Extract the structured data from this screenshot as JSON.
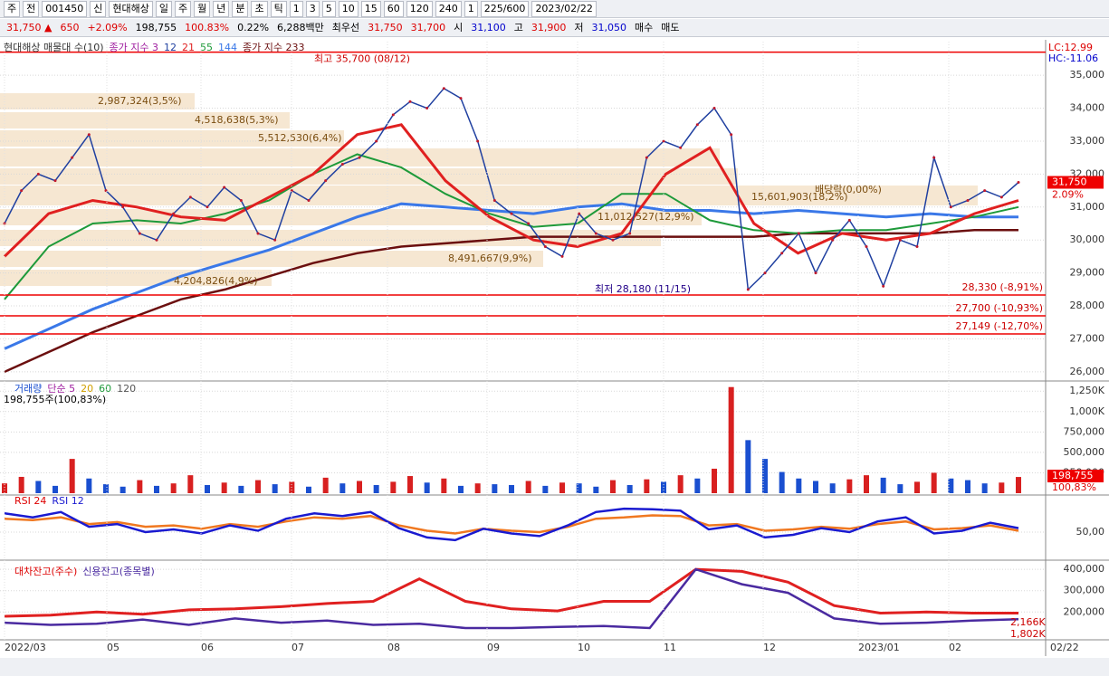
{
  "toolbar": {
    "items": [
      "주",
      "전",
      "001450",
      "신",
      "현대해상",
      "일",
      "주",
      "월",
      "년",
      "분",
      "초",
      "틱",
      "1",
      "3",
      "5",
      "10",
      "15",
      "60",
      "120",
      "240",
      "1",
      "225/600",
      "2023/02/22"
    ]
  },
  "info": {
    "items": [
      {
        "text": "31,750 ▲",
        "color": "#d00"
      },
      {
        "text": "650",
        "color": "#d00"
      },
      {
        "text": "+2.09%",
        "color": "#d00"
      },
      {
        "text": "198,755",
        "color": "#000"
      },
      {
        "text": "100.83%",
        "color": "#d00"
      },
      {
        "text": "0.22%",
        "color": "#000"
      },
      {
        "text": "6,288백만",
        "color": "#000"
      },
      {
        "text": "최우선",
        "color": "#000"
      },
      {
        "text": "31,750",
        "color": "#d00"
      },
      {
        "text": "31,700",
        "color": "#d00"
      },
      {
        "text": "시",
        "color": "#000"
      },
      {
        "text": "31,100",
        "color": "#00c"
      },
      {
        "text": "고",
        "color": "#000"
      },
      {
        "text": "31,900",
        "color": "#d00"
      },
      {
        "text": "저",
        "color": "#000"
      },
      {
        "text": "31,050",
        "color": "#00c"
      },
      {
        "text": "매수",
        "color": "#000"
      },
      {
        "text": "매도",
        "color": "#000"
      }
    ]
  },
  "price": {
    "legend": [
      "현대해상 매물대 수(10)",
      "종가 지수 3",
      "12",
      "21",
      "55",
      "144",
      "종가 지수 233"
    ],
    "lc": "LC:12.99",
    "hc": "HC:-11.06",
    "current": "31,750",
    "change": "2.09%",
    "ylim": [
      25750,
      36020
    ],
    "yticks": [
      {
        "value": 26000,
        "label": "26,000"
      },
      {
        "value": 27000,
        "label": "27,000"
      },
      {
        "value": 28000,
        "label": "28,000"
      },
      {
        "value": 29000,
        "label": "29,000"
      },
      {
        "value": 30000,
        "label": "30,000"
      },
      {
        "value": 31000,
        "label": "31,000"
      },
      {
        "value": 32000,
        "label": "32,000"
      },
      {
        "value": 33000,
        "label": "33,000"
      },
      {
        "value": 34000,
        "label": "34,000"
      },
      {
        "value": 35000,
        "label": "35,000"
      }
    ],
    "close": [
      30500,
      31500,
      32000,
      31800,
      32500,
      33200,
      31500,
      31000,
      30200,
      30000,
      30800,
      31300,
      31000,
      31600,
      31200,
      30200,
      30000,
      31500,
      31200,
      31800,
      32300,
      32500,
      33000,
      33800,
      34200,
      34000,
      34600,
      34300,
      33000,
      31200,
      30800,
      30500,
      29800,
      29500,
      30800,
      30200,
      30000,
      30200,
      32500,
      33000,
      32800,
      33500,
      34000,
      33200,
      28500,
      29000,
      29600,
      30200,
      29000,
      30000,
      30600,
      29800,
      28600,
      30000,
      29800,
      32500,
      31000,
      31200,
      31500,
      31300,
      31750
    ],
    "ma21": [
      29500,
      30800,
      31200,
      31000,
      30700,
      30600,
      31300,
      32000,
      33200,
      33500,
      31800,
      30700,
      30000,
      29800,
      30200,
      32000,
      32800,
      30500,
      29600,
      30200,
      30000,
      30200,
      30800,
      31200
    ],
    "ma55": [
      28200,
      29800,
      30500,
      30600,
      30500,
      30800,
      31200,
      32000,
      32600,
      32200,
      31400,
      30800,
      30400,
      30500,
      31400,
      31400,
      30600,
      30300,
      30200,
      30300,
      30300,
      30500,
      30700,
      31000
    ],
    "ma144": [
      26700,
      27300,
      27900,
      28400,
      28900,
      29300,
      29700,
      30200,
      30700,
      31100,
      31000,
      30900,
      30800,
      31000,
      31100,
      30900,
      30900,
      30800,
      30900,
      30800,
      30700,
      30800,
      30700,
      30700
    ],
    "ma233": [
      26000,
      26600,
      27200,
      27700,
      28200,
      28500,
      28900,
      29300,
      29600,
      29800,
      29900,
      30000,
      30100,
      30100,
      30100,
      30100,
      30100,
      30100,
      30200,
      30200,
      30200,
      30200,
      30300,
      30300
    ],
    "lines": [
      {
        "value": 35700,
        "label": "최고 35,700 (08/12)"
      },
      {
        "value": 28330,
        "label": "28,330 (-8,91%)"
      },
      {
        "value": 27700,
        "label": "27,700 (-10,93%)"
      },
      {
        "value": 27149,
        "label": "27,149 (-12,70%)"
      }
    ],
    "low_label": "최저 28,180 (11/15)",
    "profile": [
      "2,987,324(3,5%)",
      "4,518,638(5,3%)",
      "5,512,530(6,4%)",
      "4,204,826(4,9%)",
      "8,491,667(9,9%)",
      "11,012,527(12,9%)",
      "15,601,903(18,2%)",
      "배당락(0,00%)"
    ]
  },
  "volume": {
    "legend": [
      "거래량",
      "단순 5",
      "20",
      "60",
      "120"
    ],
    "sub": "198,755주(100,83%)",
    "current": "198,755",
    "ratio": "100,83%",
    "ylim": [
      0,
      1330000
    ],
    "yticks": [
      {
        "value": 250000,
        "label": "250,000"
      },
      {
        "value": 500000,
        "label": "500,000"
      },
      {
        "value": 750000,
        "label": "750,000"
      },
      {
        "value": 1000000,
        "label": "1,000K"
      },
      {
        "value": 1250000,
        "label": "1,250K"
      }
    ],
    "values": [
      120000,
      200000,
      150000,
      90000,
      420000,
      180000,
      110000,
      80000,
      160000,
      90000,
      120000,
      220000,
      100000,
      130000,
      90000,
      160000,
      110000,
      140000,
      80000,
      190000,
      120000,
      150000,
      100000,
      140000,
      210000,
      130000,
      180000,
      90000,
      120000,
      110000,
      100000,
      150000,
      90000,
      130000,
      120000,
      80000,
      160000,
      100000,
      170000,
      140000,
      220000,
      180000,
      300000,
      1300000,
      650000,
      420000,
      260000,
      180000,
      150000,
      120000,
      170000,
      220000,
      190000,
      110000,
      140000,
      250000,
      180000,
      160000,
      120000,
      130000,
      198755
    ]
  },
  "rsi": {
    "legend": [
      "RSI 24",
      "RSI 12"
    ],
    "ylim": [
      0,
      100
    ],
    "yticks": [
      {
        "value": 50,
        "label": "50,00"
      }
    ],
    "rsi24": [
      70,
      68,
      72,
      62,
      65,
      58,
      60,
      55,
      62,
      58,
      66,
      72,
      70,
      74,
      60,
      52,
      48,
      55,
      52,
      50,
      58,
      70,
      72,
      75,
      74,
      60,
      62,
      52,
      54,
      58,
      55,
      62,
      66,
      54,
      56,
      60,
      52
    ],
    "rsi12": [
      78,
      72,
      80,
      58,
      62,
      50,
      54,
      48,
      60,
      52,
      70,
      78,
      74,
      80,
      56,
      42,
      38,
      55,
      48,
      44,
      60,
      80,
      85,
      84,
      82,
      54,
      60,
      42,
      46,
      56,
      50,
      66,
      72,
      48,
      52,
      64,
      56
    ]
  },
  "credit": {
    "legend": [
      "대차잔고(주수)",
      "신용잔고(종목별)"
    ],
    "ylim": [
      70000,
      430000
    ],
    "yticks": [
      {
        "value": 200000,
        "label": "200,000"
      },
      {
        "value": 300000,
        "label": "300,000"
      },
      {
        "value": 400000,
        "label": "400,000"
      }
    ],
    "loan": [
      180000,
      185000,
      200000,
      190000,
      210000,
      215000,
      225000,
      240000,
      250000,
      355000,
      250000,
      215000,
      205000,
      250000,
      250000,
      400000,
      390000,
      340000,
      230000,
      195000,
      200000,
      195000,
      195000
    ],
    "margin": [
      150000,
      140000,
      145000,
      165000,
      140000,
      170000,
      150000,
      160000,
      140000,
      145000,
      125000,
      125000,
      130000,
      135000,
      125000,
      400000,
      330000,
      290000,
      170000,
      145000,
      150000,
      160000,
      166000
    ],
    "labels": [
      "2,166K",
      "1,802K"
    ]
  },
  "xaxis": {
    "labels": [
      "2022/03",
      "05",
      "06",
      "07",
      "08",
      "09",
      "10",
      "11",
      "12",
      "2023/01",
      "02",
      "02/22"
    ]
  }
}
